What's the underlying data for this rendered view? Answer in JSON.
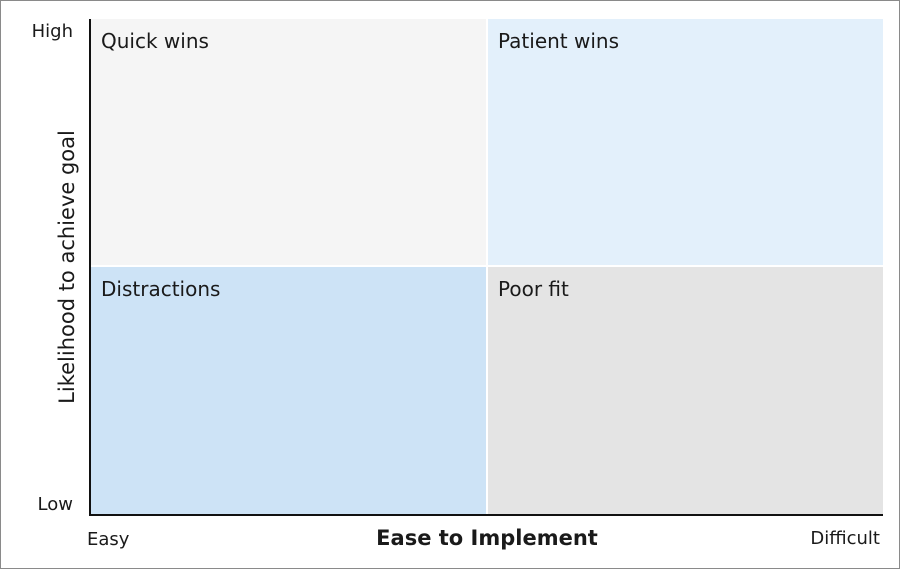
{
  "quadrants": {
    "top_left": {
      "label": "Quick wins",
      "color": "#f5f5f5"
    },
    "top_right": {
      "label": "Patient wins",
      "color": "#e3f0fb"
    },
    "bottom_left": {
      "label": "Distractions",
      "color": "#cde3f6"
    },
    "bottom_right": {
      "label": "Poor fit",
      "color": "#e4e4e4"
    }
  },
  "y_axis": {
    "title": "Likelihood to achieve goal",
    "high_label": "High",
    "low_label": "Low"
  },
  "x_axis": {
    "title": "Ease to Implement",
    "low_label": "Easy",
    "high_label": "Difficult"
  }
}
